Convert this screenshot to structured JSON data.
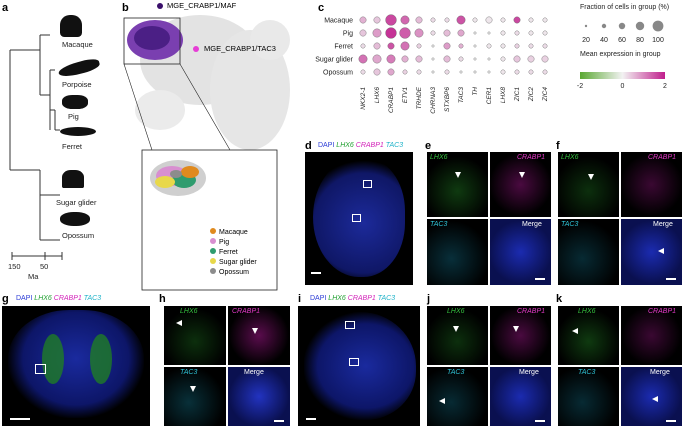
{
  "panels": {
    "a": "a",
    "b": "b",
    "c": "c",
    "d": "d",
    "e": "e",
    "f": "f",
    "g": "g",
    "h": "h",
    "i": "i",
    "j": "j",
    "k": "k"
  },
  "tree": {
    "species": [
      "Macaque",
      "Porpoise",
      "Pig",
      "Ferret",
      "Sugar glider",
      "Opossum"
    ],
    "scale_ticks": [
      "150",
      "50"
    ],
    "scale_unit": "Ma"
  },
  "umap": {
    "label_top": "MGE_CRABP1/MAF",
    "label_mid": "MGE_CRABP1/TAC3",
    "legend": [
      {
        "name": "Macaque",
        "color": "#e08a1e"
      },
      {
        "name": "Pig",
        "color": "#d88fd0"
      },
      {
        "name": "Ferret",
        "color": "#2f9c6e"
      },
      {
        "name": "Sugar glider",
        "color": "#e8d84a"
      },
      {
        "name": "Opossum",
        "color": "#8c8c8c"
      }
    ]
  },
  "dotplot": {
    "rows": [
      "Macaque",
      "Pig",
      "Ferret",
      "Sugar glider",
      "Opossum"
    ],
    "genes": [
      "NKX2-1",
      "LHX6",
      "CRABP1",
      "ETV1",
      "TRHDE",
      "CHRNA3",
      "STXBP6",
      "TAC3",
      "TH",
      "CER1",
      "LHX8",
      "ZIC1",
      "ZIC2",
      "ZIC4"
    ],
    "sizes": [
      [
        2,
        2,
        4,
        3,
        2,
        1,
        1,
        3,
        1,
        2,
        1,
        2,
        1,
        1
      ],
      [
        2,
        3,
        4,
        4,
        3,
        1,
        2,
        2,
        0,
        0,
        1,
        1,
        1,
        1
      ],
      [
        1,
        2,
        2,
        3,
        1,
        0,
        2,
        1,
        0,
        1,
        1,
        1,
        1,
        1
      ],
      [
        3,
        3,
        3,
        2,
        2,
        0,
        2,
        1,
        0,
        0,
        1,
        2,
        2,
        2
      ],
      [
        1,
        2,
        2,
        1,
        1,
        0,
        1,
        0,
        0,
        0,
        1,
        1,
        1,
        1
      ]
    ],
    "colors": [
      [
        0.6,
        0.4,
        1.6,
        1.3,
        0.5,
        0.2,
        0.2,
        1.5,
        0.1,
        0.1,
        0.1,
        1.6,
        0.1,
        0.1
      ],
      [
        0.4,
        0.8,
        1.8,
        1.4,
        0.9,
        0.2,
        0.5,
        0.7,
        0.0,
        0.0,
        0.1,
        0.2,
        0.1,
        0.1
      ],
      [
        0.2,
        0.5,
        1.5,
        1.2,
        0.3,
        0.0,
        0.8,
        0.6,
        0.0,
        0.1,
        0.1,
        0.3,
        0.2,
        0.2
      ],
      [
        1.2,
        0.7,
        1.1,
        0.6,
        0.5,
        0.0,
        0.5,
        0.2,
        0.0,
        0.0,
        0.1,
        0.4,
        0.3,
        0.3
      ],
      [
        0.2,
        0.4,
        0.7,
        0.3,
        0.2,
        0.0,
        0.2,
        0.0,
        0.0,
        0.0,
        0.1,
        0.2,
        0.2,
        0.2
      ]
    ],
    "size_legend_title": "Fraction of cells in group (%)",
    "size_legend_values": [
      "20",
      "40",
      "60",
      "80",
      "100"
    ],
    "color_legend_title": "Mean expression in group",
    "color_ticks": [
      "-2",
      "0",
      "2"
    ]
  },
  "stain": {
    "dapi": "DAPI",
    "lhx6": "LHX6",
    "crabp1": "CRABP1",
    "tac3": "TAC3",
    "merge": "Merge",
    "box_e": "e",
    "box_f": "f",
    "box_h": "h",
    "box_j": "j",
    "box_k": "k"
  }
}
